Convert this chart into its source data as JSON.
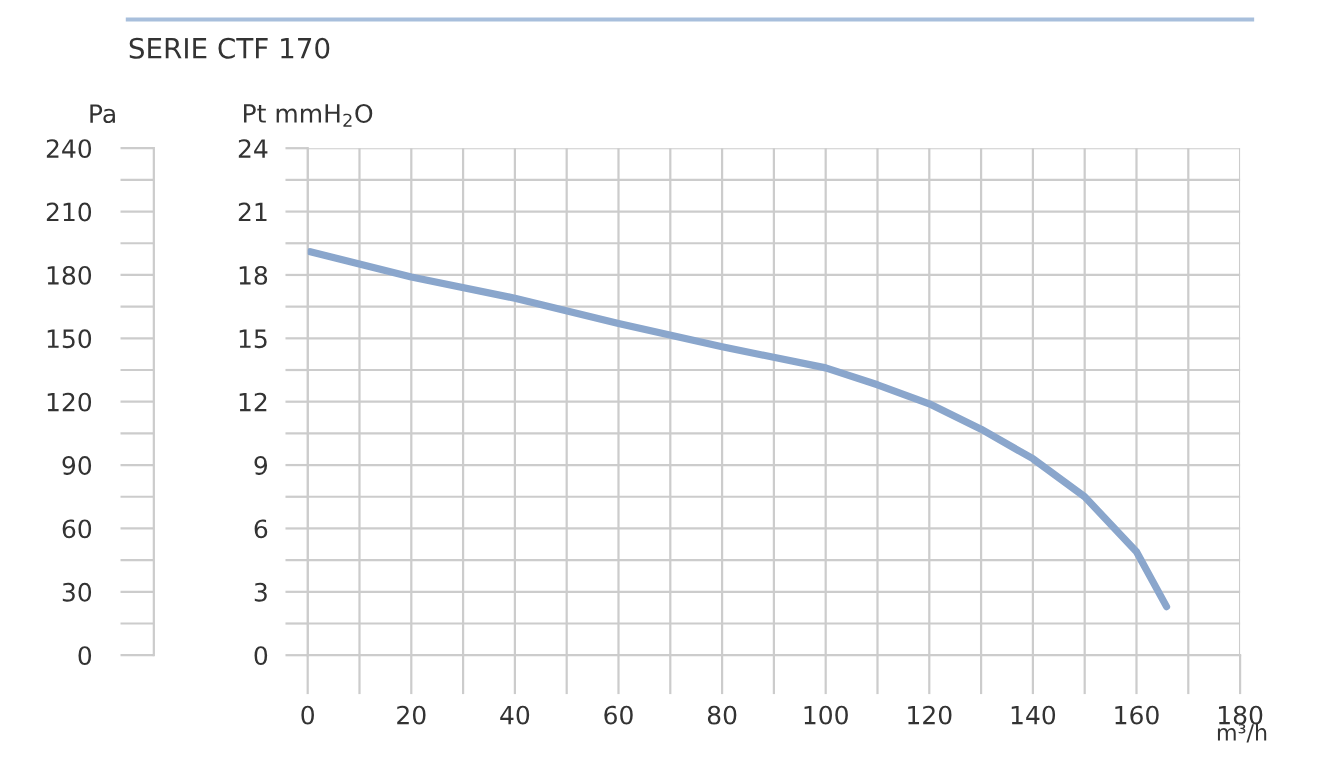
{
  "chart_data": {
    "type": "line",
    "title": "SERIE CTF 170",
    "xlabel": "m³/h",
    "ylabel": "Pt mmH$_{2}$O",
    "y2label": "Pa",
    "x": [
      0.5,
      20,
      40,
      60,
      80,
      100,
      110,
      120,
      130,
      140,
      150,
      160,
      165.8
    ],
    "series": [
      {
        "color": "#8aa6cc",
        "values": [
          19.1,
          17.9,
          16.9,
          15.7,
          14.6,
          13.6,
          12.8,
          11.9,
          10.7,
          9.3,
          7.5,
          4.9,
          2.3
        ]
      }
    ],
    "xlim": [
      0,
      180
    ],
    "ylim": [
      0,
      24
    ],
    "y2lim": [
      0,
      240
    ],
    "xticks": [
      0,
      {
        "value": 10,
        "label": null
      },
      20,
      {
        "value": 30,
        "label": null
      },
      40,
      {
        "value": 50,
        "label": null
      },
      60,
      {
        "value": 70,
        "label": null
      },
      80,
      {
        "value": 90,
        "label": null
      },
      100,
      {
        "value": 110,
        "label": null
      },
      120,
      {
        "value": 130,
        "label": null
      },
      140,
      {
        "value": 150,
        "label": null
      },
      160,
      {
        "value": 170,
        "label": null
      },
      180
    ],
    "yticks": [
      0,
      {
        "value": 1.5,
        "label": null
      },
      3,
      {
        "value": 4.5,
        "label": null
      },
      6,
      {
        "value": 7.5,
        "label": null
      },
      9,
      {
        "value": 10.5,
        "label": null
      },
      12,
      {
        "value": 13.5,
        "label": null
      },
      15,
      {
        "value": 16.5,
        "label": null
      },
      18,
      {
        "value": 19.5,
        "label": null
      },
      21,
      {
        "value": 22.5,
        "label": null
      },
      24
    ],
    "y2ticks": [
      0,
      {
        "value": 15,
        "label": null
      },
      30,
      {
        "value": 45,
        "label": null
      },
      60,
      {
        "value": 75,
        "label": null
      },
      90,
      {
        "value": 105,
        "label": null
      },
      120,
      {
        "value": 135,
        "label": null
      },
      150,
      {
        "value": 165,
        "label": null
      },
      180,
      {
        "value": 195,
        "label": null
      },
      210,
      {
        "value": 225,
        "label": null
      },
      240
    ],
    "grid": true,
    "marker": "none",
    "line_style": "solid"
  }
}
